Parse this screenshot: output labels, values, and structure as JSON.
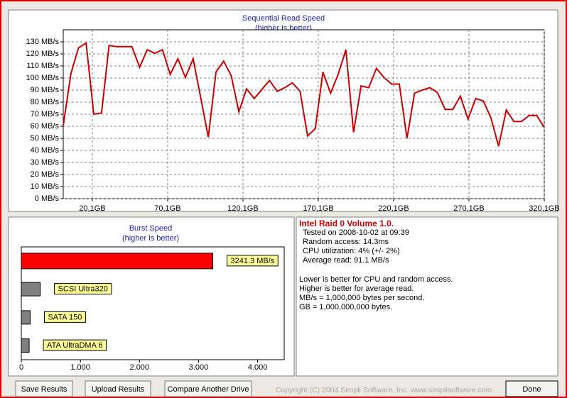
{
  "chart_data": [
    {
      "type": "line",
      "title": "Sequential Read Speed",
      "subtitle": "(higher is better)",
      "color": "#cc0000",
      "grid": true,
      "x": [
        0.8,
        5.9,
        10.9,
        16.0,
        21.1,
        26.2,
        31.2,
        36.3,
        41.4,
        46.4,
        51.5,
        56.6,
        61.6,
        66.7,
        71.8,
        76.9,
        81.9,
        87.0,
        92.1,
        97.1,
        102.2,
        107.3,
        112.3,
        117.4,
        122.5,
        127.6,
        132.6,
        137.7,
        142.8,
        147.8,
        152.9,
        158.0,
        163.0,
        168.1,
        173.2,
        178.3,
        183.3,
        188.4,
        193.5,
        198.5,
        203.6,
        208.7,
        213.7,
        218.8,
        223.9,
        229.0,
        234.0,
        239.1,
        244.2,
        249.2,
        254.3,
        259.4,
        264.4,
        269.5,
        274.6,
        279.7,
        284.7,
        289.8,
        294.9,
        299.9,
        305.0,
        310.1,
        315.1,
        320.1
      ],
      "values": [
        60.6,
        103.5,
        125,
        129,
        70,
        71,
        127,
        126,
        126,
        126,
        109,
        123.5,
        120.5,
        123.5,
        103,
        116,
        100.5,
        116,
        83.5,
        51,
        105,
        114,
        102,
        72,
        91,
        83,
        90.5,
        98,
        89,
        92,
        96,
        89,
        52,
        58,
        105,
        87.5,
        103,
        123.5,
        55,
        93.5,
        92,
        108,
        100.5,
        95,
        95,
        50,
        87.5,
        90,
        92,
        88,
        74,
        74,
        85,
        66,
        83,
        81,
        67,
        43.5,
        73.5,
        64,
        64,
        69,
        69,
        59
      ],
      "xlim": [
        0.8,
        320.1
      ],
      "xticks": [
        {
          "value": 20.1,
          "label": "20,1GB"
        },
        {
          "value": 70.1,
          "label": "70,1GB"
        },
        {
          "value": 120.1,
          "label": "120,1GB"
        },
        {
          "value": 170.1,
          "label": "170,1GB"
        },
        {
          "value": 220.1,
          "label": "220,1GB"
        },
        {
          "value": 270.1,
          "label": "270,1GB"
        },
        {
          "value": 320.1,
          "label": "320,1GB"
        }
      ],
      "ylim": [
        0,
        140
      ],
      "yticks": [
        {
          "value": 0,
          "label": "0 MB/s"
        },
        {
          "value": 10,
          "label": "10 MB/s"
        },
        {
          "value": 20,
          "label": "20 MB/s"
        },
        {
          "value": 30,
          "label": "30 MB/s"
        },
        {
          "value": 40,
          "label": "40 MB/s"
        },
        {
          "value": 50,
          "label": "50 MB/s"
        },
        {
          "value": 60,
          "label": "60 MB/s"
        },
        {
          "value": 70,
          "label": "70 MB/s"
        },
        {
          "value": 80,
          "label": "80 MB/s"
        },
        {
          "value": 90,
          "label": "90 MB/s"
        },
        {
          "value": 100,
          "label": "100 MB/s"
        },
        {
          "value": 110,
          "label": "110 MB/s"
        },
        {
          "value": 120,
          "label": "120 MB/s"
        },
        {
          "value": 130,
          "label": "130 MB/s"
        }
      ]
    },
    {
      "type": "hbar",
      "title": "Burst Speed",
      "subtitle": "(higher is better)",
      "categories": [
        null,
        "SCSI Ultra320",
        "SATA 150",
        "ATA UltraDMA 6"
      ],
      "values": [
        3241.3,
        320,
        150,
        133
      ],
      "value_labels": [
        "3241.3 MB/s",
        null,
        null,
        null
      ],
      "colors": [
        "#ff0000",
        "#808080",
        "#808080",
        "#808080"
      ],
      "xlim": [
        0,
        4450
      ],
      "xticks": [
        0,
        {
          "value": 1000,
          "label": "1.000"
        },
        {
          "value": 2000,
          "label": "2.000"
        },
        {
          "value": 3000,
          "label": "3.000"
        },
        {
          "value": 4000,
          "label": "4.000"
        }
      ]
    }
  ],
  "info": {
    "title": "Intel Raid 0 Volume 1.0.",
    "stats": [
      "Tested on 2008-10-02 at 09:39",
      "Random access: 14.3ms",
      "CPU utilization: 4% (+/- 2%)",
      "Average read: 91.1 MB/s"
    ],
    "notes": [
      "Lower is better for CPU and random access.",
      "Higher is better for average read.",
      "MB/s = 1,000,000 bytes per second.",
      "GB = 1,000,000,000 bytes."
    ]
  },
  "buttons": [
    "Save Results",
    "Upload Results",
    "Compare Another Drive",
    "Done"
  ],
  "footer": "Copyright (C) 2004 Simpli Software, Inc. www.simplisoftware.com"
}
